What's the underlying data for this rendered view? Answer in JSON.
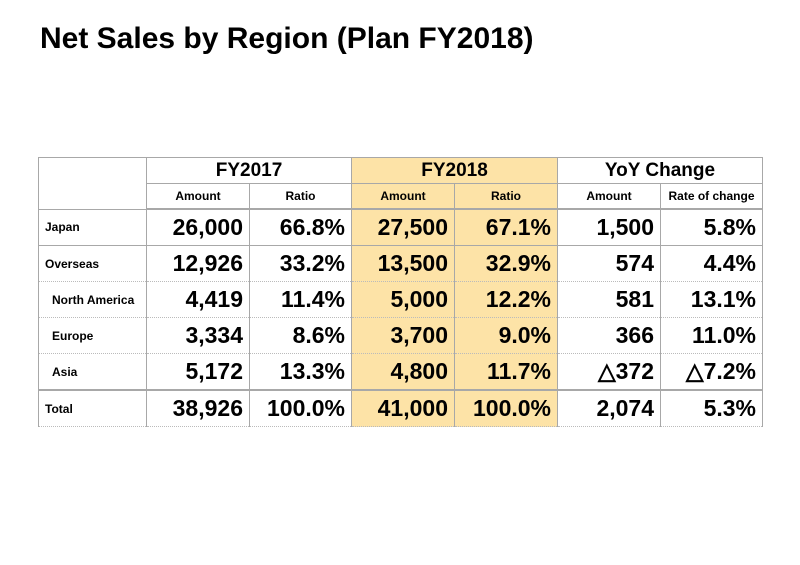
{
  "title": "Net Sales by Region (Plan FY2018)",
  "highlight_color": "#fde3a7",
  "groups": [
    "FY2017",
    "FY2018",
    "YoY Change"
  ],
  "subheaders": [
    "Amount",
    "Ratio",
    "Amount",
    "Ratio",
    "Amount",
    "Rate of change"
  ],
  "rows": [
    {
      "label": "Japan",
      "values": [
        "26,000",
        "66.8%",
        "27,500",
        "67.1%",
        "1,500",
        "5.8%"
      ]
    },
    {
      "label": "Overseas",
      "values": [
        "12,926",
        "33.2%",
        "13,500",
        "32.9%",
        "574",
        "4.4%"
      ]
    },
    {
      "label": "North America",
      "values": [
        "4,419",
        "11.4%",
        "5,000",
        "12.2%",
        "581",
        "13.1%"
      ]
    },
    {
      "label": "Europe",
      "values": [
        "3,334",
        "8.6%",
        "3,700",
        "9.0%",
        "366",
        "11.0%"
      ]
    },
    {
      "label": "Asia",
      "values": [
        "5,172",
        "13.3%",
        "4,800",
        "11.7%",
        "△372",
        "△7.2%"
      ]
    },
    {
      "label": "Total",
      "values": [
        "38,926",
        "100.0%",
        "41,000",
        "100.0%",
        "2,074",
        "5.3%"
      ]
    }
  ]
}
